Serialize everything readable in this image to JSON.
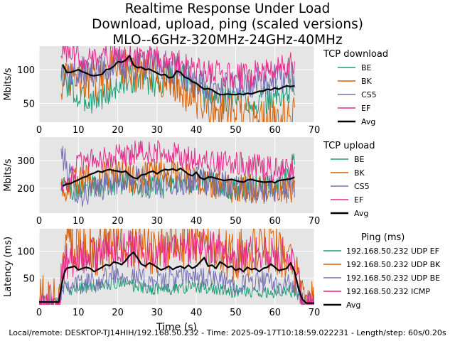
{
  "title": [
    "Realtime Response Under Load",
    "Download, upload, ping (scaled versions)",
    "MLO--6GHz-320MHz-24GHz-40MHz"
  ],
  "footer": "Local/remote: DESKTOP-TJ14HIH/192.168.50.232 - Time: 2025-09-17T10:18:59.022231 - Length/step: 60s/0.20s",
  "colors": {
    "plot_bg": "#e5e5e5",
    "grid": "#ffffff",
    "green": "#1b9e77",
    "orange": "#d95f02",
    "purple": "#7570b3",
    "pink": "#e7298a",
    "avg": "#000000"
  },
  "chart_data": [
    {
      "type": "line",
      "xlabel": "",
      "ylabel": "Mbits/s",
      "xlim": [
        0,
        70
      ],
      "ylim": [
        22,
        135
      ],
      "xticks": [
        0,
        10,
        20,
        30,
        40,
        50,
        60,
        70
      ],
      "yticks": [
        50,
        100
      ],
      "grid": true,
      "legend": {
        "title": "TCP download",
        "placement": "right"
      },
      "series": [
        {
          "name": "BE",
          "color": "#1b9e77",
          "x": [
            5.6,
            10,
            15,
            20,
            25,
            30,
            35,
            40,
            45,
            50,
            55,
            60,
            65
          ],
          "values": [
            95,
            55,
            58,
            75,
            90,
            80,
            100,
            70,
            55,
            60,
            50,
            58,
            70
          ]
        },
        {
          "name": "BK",
          "color": "#d95f02",
          "x": [
            5.6,
            10,
            15,
            20,
            25,
            30,
            35,
            40,
            45,
            50,
            55,
            60,
            65
          ],
          "values": [
            80,
            85,
            80,
            110,
            95,
            90,
            75,
            55,
            40,
            35,
            30,
            30,
            30
          ]
        },
        {
          "name": "CS5",
          "color": "#7570b3",
          "x": [
            5.6,
            10,
            15,
            20,
            25,
            30,
            35,
            40,
            45,
            50,
            55,
            60,
            65
          ],
          "values": [
            100,
            95,
            100,
            110,
            105,
            110,
            100,
            80,
            70,
            75,
            80,
            85,
            90
          ]
        },
        {
          "name": "EF",
          "color": "#e7298a",
          "x": [
            5.6,
            10,
            15,
            20,
            25,
            30,
            35,
            40,
            45,
            50,
            55,
            60,
            65
          ],
          "values": [
            130,
            120,
            115,
            125,
            120,
            115,
            110,
            100,
            95,
            90,
            95,
            100,
            110
          ]
        },
        {
          "name": "Avg",
          "color": "#000000",
          "x": [
            6,
            7,
            8,
            9,
            10,
            11,
            12,
            13,
            14,
            15,
            16,
            17,
            18,
            19,
            20,
            21,
            22,
            23,
            24,
            25,
            26,
            27,
            28,
            29,
            30,
            31,
            32,
            33,
            34,
            35,
            36,
            37,
            38,
            39,
            40,
            41,
            42,
            43,
            44,
            45,
            46,
            47,
            48,
            49,
            50,
            51,
            52,
            53,
            54,
            55,
            56,
            57,
            58,
            59,
            60,
            61,
            62,
            63,
            64,
            65
          ],
          "values": [
            108,
            96,
            96,
            98,
            100,
            97,
            95,
            92,
            91,
            92,
            93,
            100,
            101,
            105,
            112,
            111,
            114,
            121,
            107,
            103,
            104,
            100,
            101,
            98,
            95,
            92,
            93,
            88,
            89,
            98,
            96,
            89,
            87,
            82,
            80,
            75,
            71,
            72,
            70,
            66,
            63,
            63,
            64,
            63,
            63,
            64,
            63,
            65,
            64,
            66,
            68,
            68,
            71,
            70,
            73,
            71,
            74,
            76,
            75,
            76
          ]
        }
      ]
    },
    {
      "type": "line",
      "xlabel": "",
      "ylabel": "Mbits/s",
      "xlim": [
        0,
        70
      ],
      "ylim": [
        110,
        385
      ],
      "xticks": [
        0,
        10,
        20,
        30,
        40,
        50,
        60,
        70
      ],
      "yticks": [
        200,
        300
      ],
      "grid": true,
      "legend": {
        "title": "TCP upload",
        "placement": "right"
      },
      "series": [
        {
          "name": "BE",
          "color": "#1b9e77",
          "x": [
            5.6,
            10,
            15,
            20,
            25,
            30,
            35,
            40,
            45,
            50,
            55,
            60,
            65
          ],
          "values": [
            210,
            200,
            210,
            220,
            210,
            200,
            220,
            230,
            210,
            200,
            210,
            200,
            300
          ]
        },
        {
          "name": "BK",
          "color": "#d95f02",
          "x": [
            5.6,
            10,
            15,
            20,
            25,
            30,
            35,
            40,
            45,
            50,
            55,
            60,
            65
          ],
          "values": [
            200,
            230,
            240,
            250,
            230,
            260,
            250,
            220,
            210,
            200,
            200,
            190,
            200
          ]
        },
        {
          "name": "CS5",
          "color": "#7570b3",
          "x": [
            5.6,
            10,
            15,
            20,
            25,
            30,
            35,
            40,
            45,
            50,
            55,
            60,
            65
          ],
          "values": [
            330,
            170,
            200,
            230,
            230,
            200,
            220,
            230,
            220,
            210,
            200,
            200,
            200
          ]
        },
        {
          "name": "EF",
          "color": "#e7298a",
          "x": [
            5.6,
            10,
            15,
            20,
            25,
            30,
            35,
            40,
            45,
            50,
            55,
            60,
            65
          ],
          "values": [
            180,
            290,
            300,
            320,
            330,
            330,
            320,
            300,
            290,
            290,
            280,
            270,
            270
          ]
        },
        {
          "name": "Avg",
          "color": "#000000",
          "x": [
            6,
            7,
            8,
            9,
            10,
            11,
            12,
            13,
            14,
            15,
            16,
            17,
            18,
            19,
            20,
            21,
            22,
            23,
            24,
            25,
            26,
            27,
            28,
            29,
            30,
            31,
            32,
            33,
            34,
            35,
            36,
            37,
            38,
            39,
            40,
            41,
            42,
            43,
            44,
            45,
            46,
            47,
            48,
            49,
            50,
            51,
            52,
            53,
            54,
            55,
            56,
            57,
            58,
            59,
            60,
            61,
            62,
            63,
            64,
            65
          ],
          "values": [
            208,
            215,
            217,
            225,
            230,
            238,
            242,
            250,
            255,
            262,
            258,
            265,
            268,
            264,
            262,
            258,
            262,
            248,
            238,
            235,
            248,
            250,
            258,
            262,
            252,
            262,
            268,
            266,
            270,
            264,
            272,
            262,
            250,
            245,
            258,
            238,
            232,
            240,
            240,
            236,
            232,
            228,
            230,
            232,
            228,
            224,
            222,
            230,
            232,
            228,
            225,
            222,
            222,
            224,
            220,
            228,
            230,
            232,
            234,
            240
          ]
        }
      ]
    },
    {
      "type": "line",
      "xlabel": "Time (s)",
      "ylabel": "Latency (ms)",
      "xlim": [
        0,
        70
      ],
      "ylim": [
        0,
        142
      ],
      "xticks": [
        0,
        10,
        20,
        30,
        40,
        50,
        60,
        70
      ],
      "yticks": [
        50,
        100
      ],
      "grid": true,
      "legend": {
        "title": "Ping (ms)",
        "placement": "right"
      },
      "series": [
        {
          "name": "192.168.50.232 UDP EF",
          "color": "#1b9e77",
          "x": [
            0,
            5,
            6,
            10,
            15,
            20,
            25,
            30,
            35,
            40,
            45,
            50,
            55,
            60,
            65,
            67,
            70
          ],
          "values": [
            3,
            3,
            30,
            30,
            35,
            40,
            35,
            30,
            30,
            35,
            30,
            25,
            25,
            25,
            25,
            5,
            3
          ]
        },
        {
          "name": "192.168.50.232 UDP BK",
          "color": "#d95f02",
          "x": [
            0,
            5,
            6,
            10,
            15,
            20,
            25,
            30,
            35,
            40,
            45,
            50,
            55,
            60,
            65,
            67,
            70
          ],
          "values": [
            5,
            5,
            110,
            120,
            100,
            130,
            110,
            100,
            120,
            110,
            100,
            90,
            100,
            110,
            60,
            5,
            5
          ]
        },
        {
          "name": "192.168.50.232 UDP BE",
          "color": "#7570b3",
          "x": [
            0,
            5,
            6,
            10,
            15,
            20,
            25,
            30,
            35,
            40,
            45,
            50,
            55,
            60,
            65,
            67,
            70
          ],
          "values": [
            3,
            3,
            40,
            40,
            45,
            60,
            50,
            45,
            50,
            55,
            45,
            40,
            45,
            40,
            35,
            5,
            3
          ]
        },
        {
          "name": "192.168.50.232 ICMP",
          "color": "#e7298a",
          "x": [
            0,
            5,
            6,
            10,
            15,
            20,
            25,
            30,
            35,
            40,
            45,
            50,
            55,
            60,
            65,
            67,
            70
          ],
          "values": [
            3,
            3,
            80,
            90,
            95,
            110,
            100,
            95,
            100,
            110,
            100,
            90,
            95,
            100,
            70,
            5,
            3
          ]
        },
        {
          "name": "Avg",
          "color": "#000000",
          "x": [
            0,
            5,
            5.8,
            6.5,
            7,
            8,
            9,
            10,
            11,
            12,
            13,
            14,
            15,
            16,
            17,
            18,
            19,
            20,
            21,
            22,
            23,
            24,
            25,
            26,
            27,
            28,
            29,
            30,
            31,
            32,
            33,
            34,
            35,
            36,
            37,
            38,
            39,
            40,
            41,
            42,
            43,
            44,
            45,
            46,
            47,
            48,
            49,
            50,
            51,
            52,
            53,
            54,
            55,
            56,
            57,
            58,
            59,
            60,
            61,
            62,
            63,
            64,
            65,
            66,
            67,
            68,
            70
          ],
          "values": [
            5,
            5,
            40,
            62,
            68,
            70,
            72,
            65,
            68,
            70,
            68,
            62,
            66,
            70,
            75,
            73,
            80,
            78,
            75,
            82,
            92,
            98,
            88,
            76,
            72,
            78,
            75,
            70,
            65,
            68,
            72,
            66,
            70,
            72,
            68,
            74,
            68,
            72,
            80,
            88,
            72,
            74,
            68,
            80,
            76,
            70,
            72,
            64,
            68,
            62,
            70,
            66,
            68,
            62,
            68,
            70,
            76,
            70,
            64,
            66,
            68,
            78,
            62,
            30,
            10,
            3,
            3
          ]
        }
      ]
    }
  ]
}
